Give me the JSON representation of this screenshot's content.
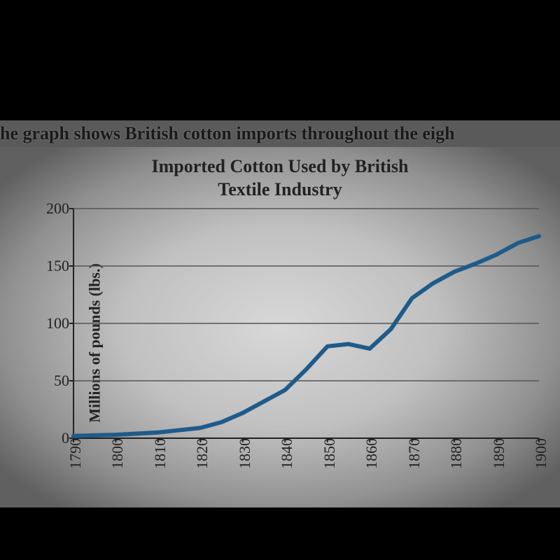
{
  "caption": "he graph shows British cotton imports throughout the eigh",
  "chart": {
    "type": "line",
    "title_line1": "Imported Cotton Used by British",
    "title_line2": "Textile Industry",
    "title_fontsize": 26,
    "ylabel": "Millions of pounds (lbs.)",
    "label_fontsize": 22,
    "ylim": [
      0,
      200
    ],
    "ytick_step": 50,
    "xticks": [
      1790,
      1800,
      1810,
      1820,
      1830,
      1840,
      1850,
      1860,
      1870,
      1880,
      1890,
      1900
    ],
    "x_years": [
      1790,
      1800,
      1810,
      1820,
      1825,
      1830,
      1835,
      1840,
      1845,
      1850,
      1855,
      1860,
      1865,
      1870,
      1875,
      1880,
      1885,
      1890,
      1895,
      1900
    ],
    "y_values": [
      2,
      3,
      5,
      9,
      14,
      22,
      32,
      42,
      60,
      80,
      82,
      78,
      95,
      122,
      135,
      145,
      152,
      160,
      170,
      176
    ],
    "line_color": "#1f5b8a",
    "line_width": 6,
    "grid_color": "#555555",
    "axis_color": "#222222",
    "grid_width": 1.5,
    "background_color": "#d8d8d8",
    "tick_mark_length": 6
  }
}
